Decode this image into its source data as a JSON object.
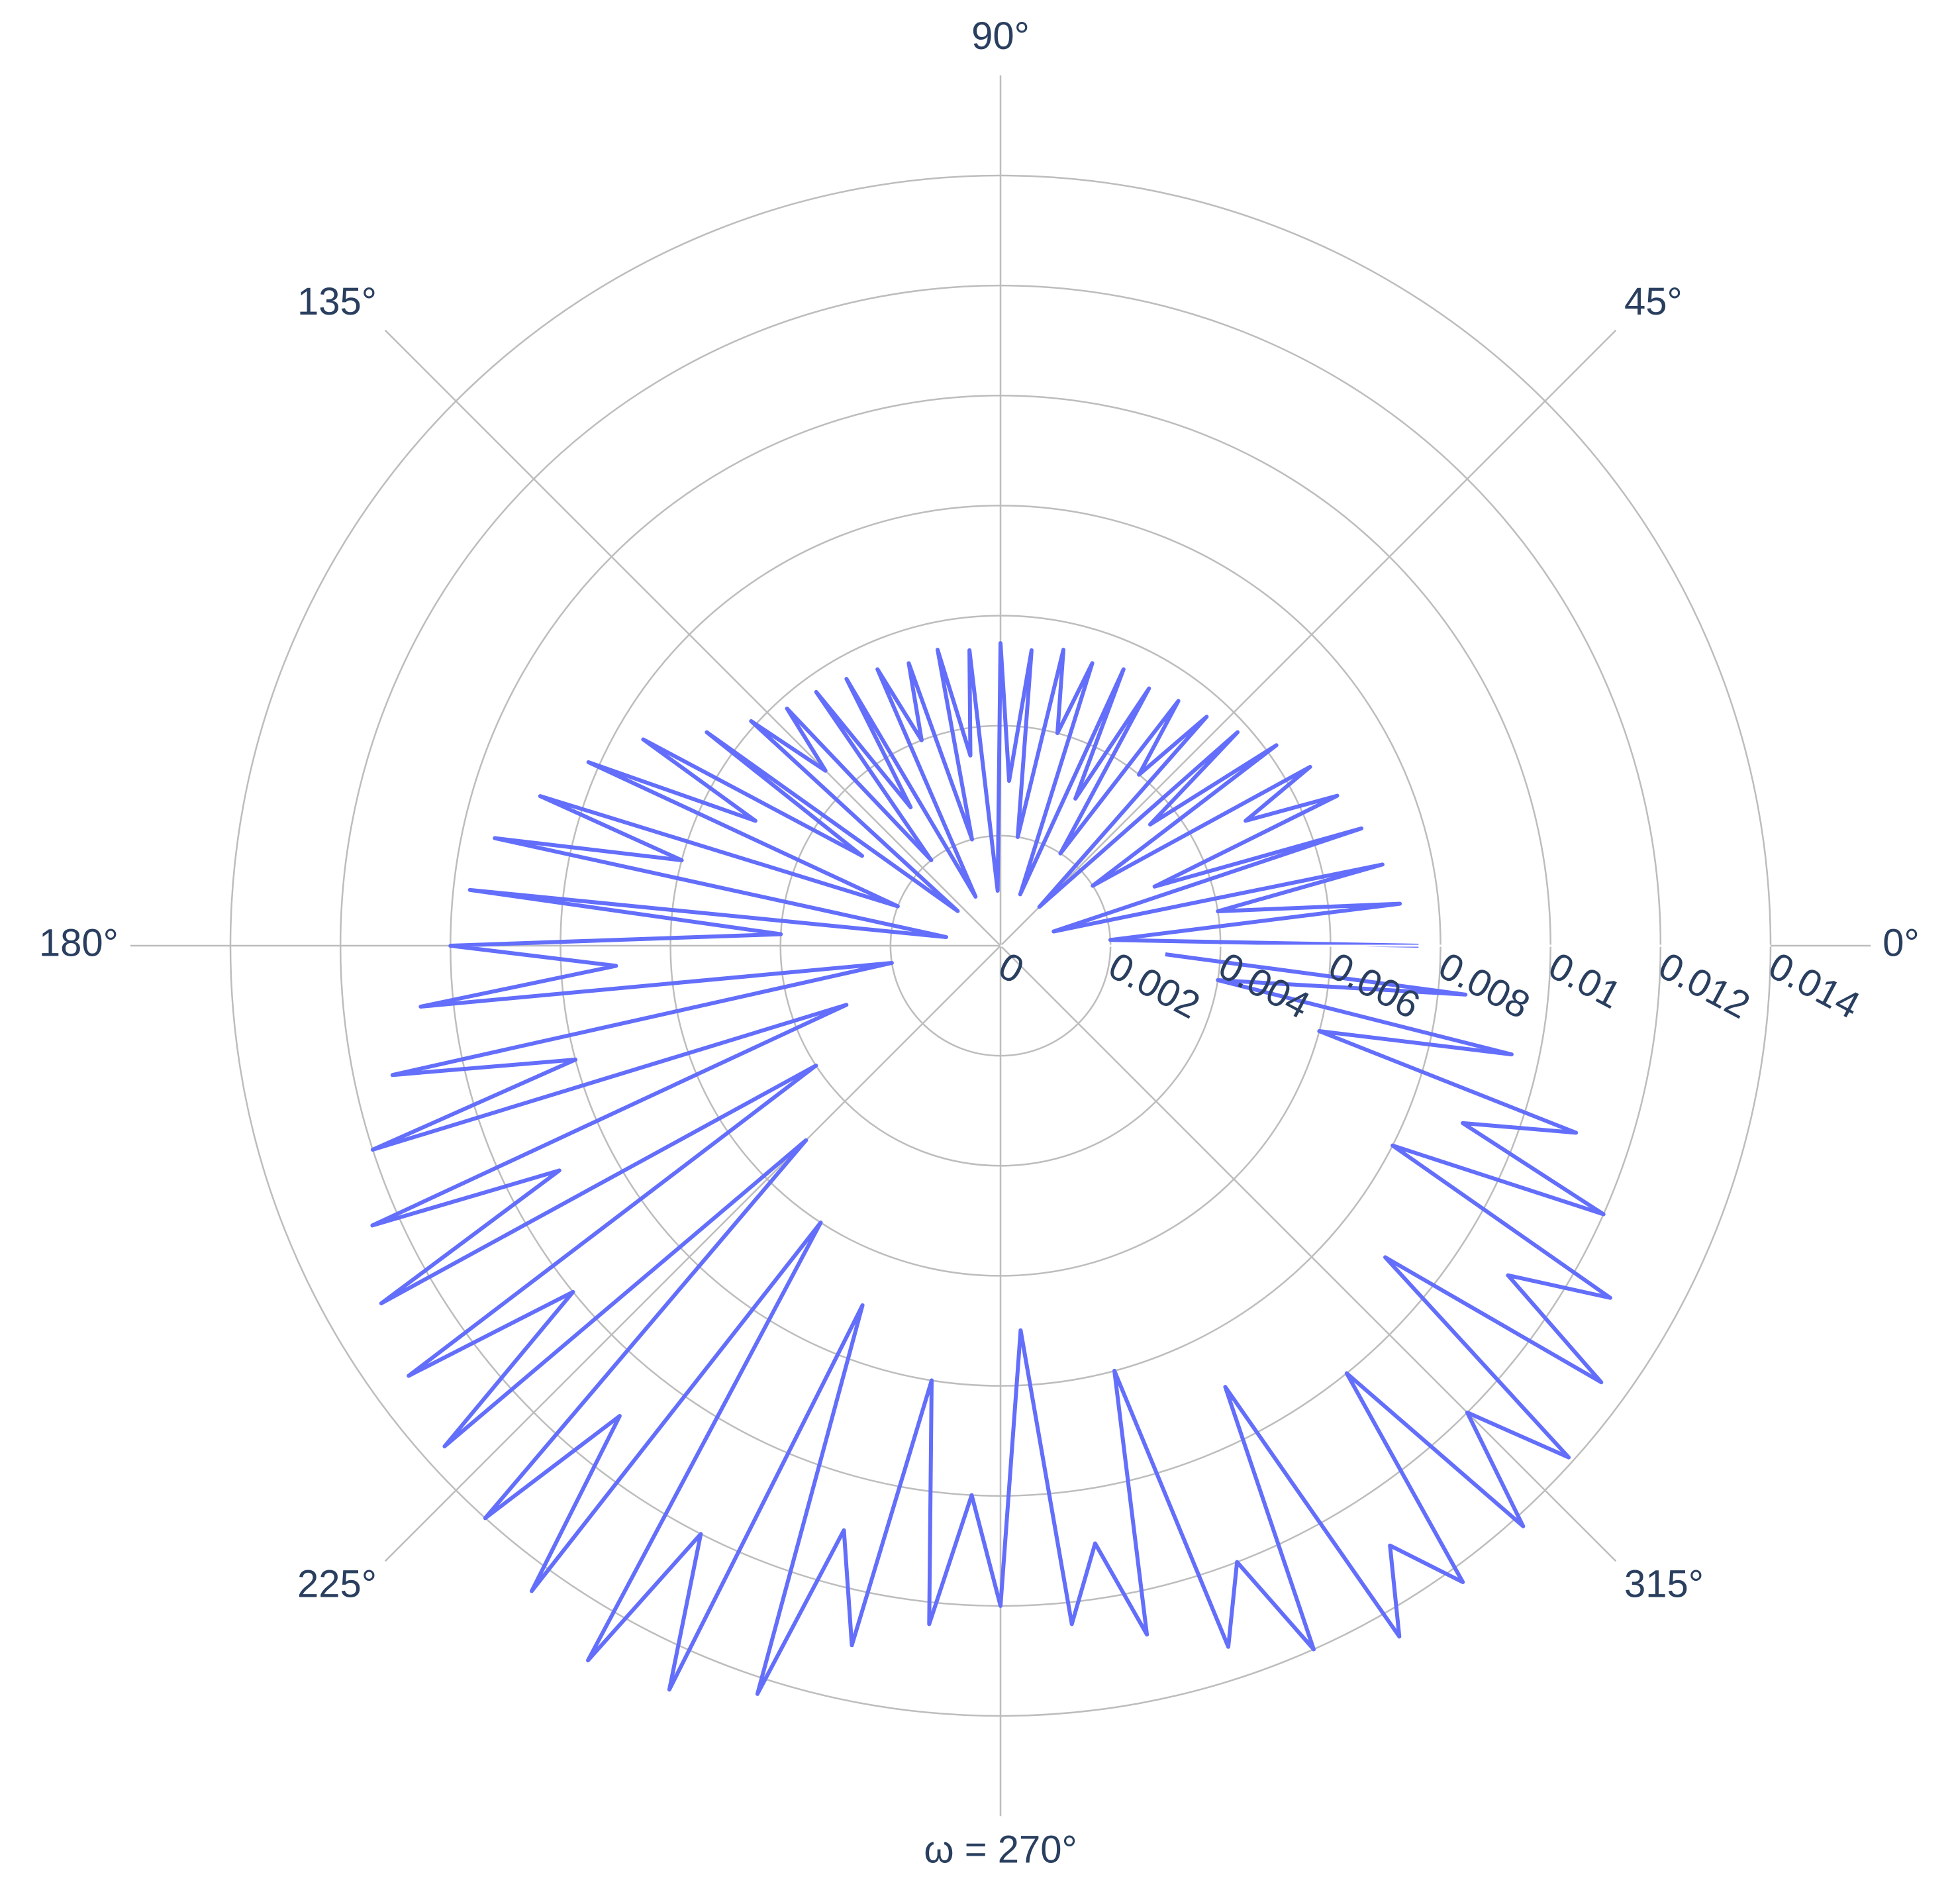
{
  "chart_data": {
    "type": "polar",
    "rlim": [
      0,
      0.014
    ],
    "rticks": [
      0,
      0.002,
      0.004,
      0.006,
      0.008,
      0.01,
      0.012,
      0.014
    ],
    "thetaticks": [
      {
        "value": 0,
        "label": "0°"
      },
      {
        "value": 45,
        "label": "45°"
      },
      {
        "value": 90,
        "label": "90°"
      },
      {
        "value": 135,
        "label": "135°"
      },
      {
        "value": 180,
        "label": "180°"
      },
      {
        "value": 225,
        "label": "225°"
      },
      {
        "value": 270,
        "label": "ω = 270°"
      },
      {
        "value": 315,
        "label": "315°"
      }
    ],
    "grid": true,
    "series": [
      {
        "color": "#636efa",
        "theta": [
          0,
          3,
          6,
          9,
          12,
          15,
          18,
          21,
          24,
          27,
          30,
          33,
          36,
          39,
          42,
          45,
          48,
          51,
          54,
          57,
          60,
          63,
          66,
          69,
          72,
          75,
          78,
          81,
          84,
          87,
          90,
          93,
          96,
          99,
          102,
          105,
          108,
          111,
          114,
          117,
          120,
          123,
          126,
          129,
          132,
          135,
          138,
          141,
          144,
          147,
          150,
          153,
          156,
          159,
          162,
          165,
          168,
          171,
          174,
          177,
          180,
          183,
          186,
          189,
          192,
          195,
          198,
          201,
          204,
          207,
          210,
          213,
          216,
          219,
          222,
          225,
          228,
          231,
          234,
          237,
          240,
          243,
          246,
          249,
          252,
          255,
          258,
          261,
          264,
          267,
          270,
          273,
          276,
          279,
          282,
          285,
          288,
          291,
          294,
          297,
          300,
          303,
          306,
          309,
          312,
          315,
          318,
          321,
          324,
          327,
          330,
          333,
          336,
          339,
          342,
          345,
          348,
          351,
          354,
          357
        ],
        "r": [
          0.0076,
          0.002,
          0.0073,
          0.004,
          0.0071,
          0.001,
          0.0069,
          0.003,
          0.0067,
          0.005,
          0.0065,
          0.002,
          0.0062,
          0.0035,
          0.0058,
          0.001,
          0.0056,
          0.004,
          0.0055,
          0.002,
          0.0054,
          0.003,
          0.0055,
          0.001,
          0.0054,
          0.004,
          0.0055,
          0.002,
          0.0054,
          0.003,
          0.0055,
          0.001,
          0.0054,
          0.0035,
          0.0055,
          0.002,
          0.0054,
          0.004,
          0.0055,
          0.001,
          0.0056,
          0.003,
          0.0057,
          0.002,
          0.0058,
          0.0045,
          0.0061,
          0.001,
          0.0066,
          0.003,
          0.0075,
          0.005,
          0.0082,
          0.002,
          0.0088,
          0.006,
          0.0094,
          0.001,
          0.0097,
          0.004,
          0.01,
          0.007,
          0.0106,
          0.002,
          0.0113,
          0.008,
          0.012,
          0.003,
          0.0125,
          0.009,
          0.013,
          0.004,
          0.0133,
          0.01,
          0.0136,
          0.005,
          0.014,
          0.011,
          0.0145,
          0.006,
          0.015,
          0.012,
          0.0148,
          0.007,
          0.0143,
          0.011,
          0.013,
          0.008,
          0.0124,
          0.01,
          0.012,
          0.007,
          0.0124,
          0.011,
          0.0128,
          0.008,
          0.0134,
          0.012,
          0.014,
          0.009,
          0.0145,
          0.013,
          0.0143,
          0.01,
          0.0142,
          0.012,
          0.0139,
          0.009,
          0.0135,
          0.011,
          0.0128,
          0.008,
          0.012,
          0.009,
          0.011,
          0.006,
          0.0095,
          0.004,
          0.0085,
          0.003
        ]
      }
    ]
  }
}
